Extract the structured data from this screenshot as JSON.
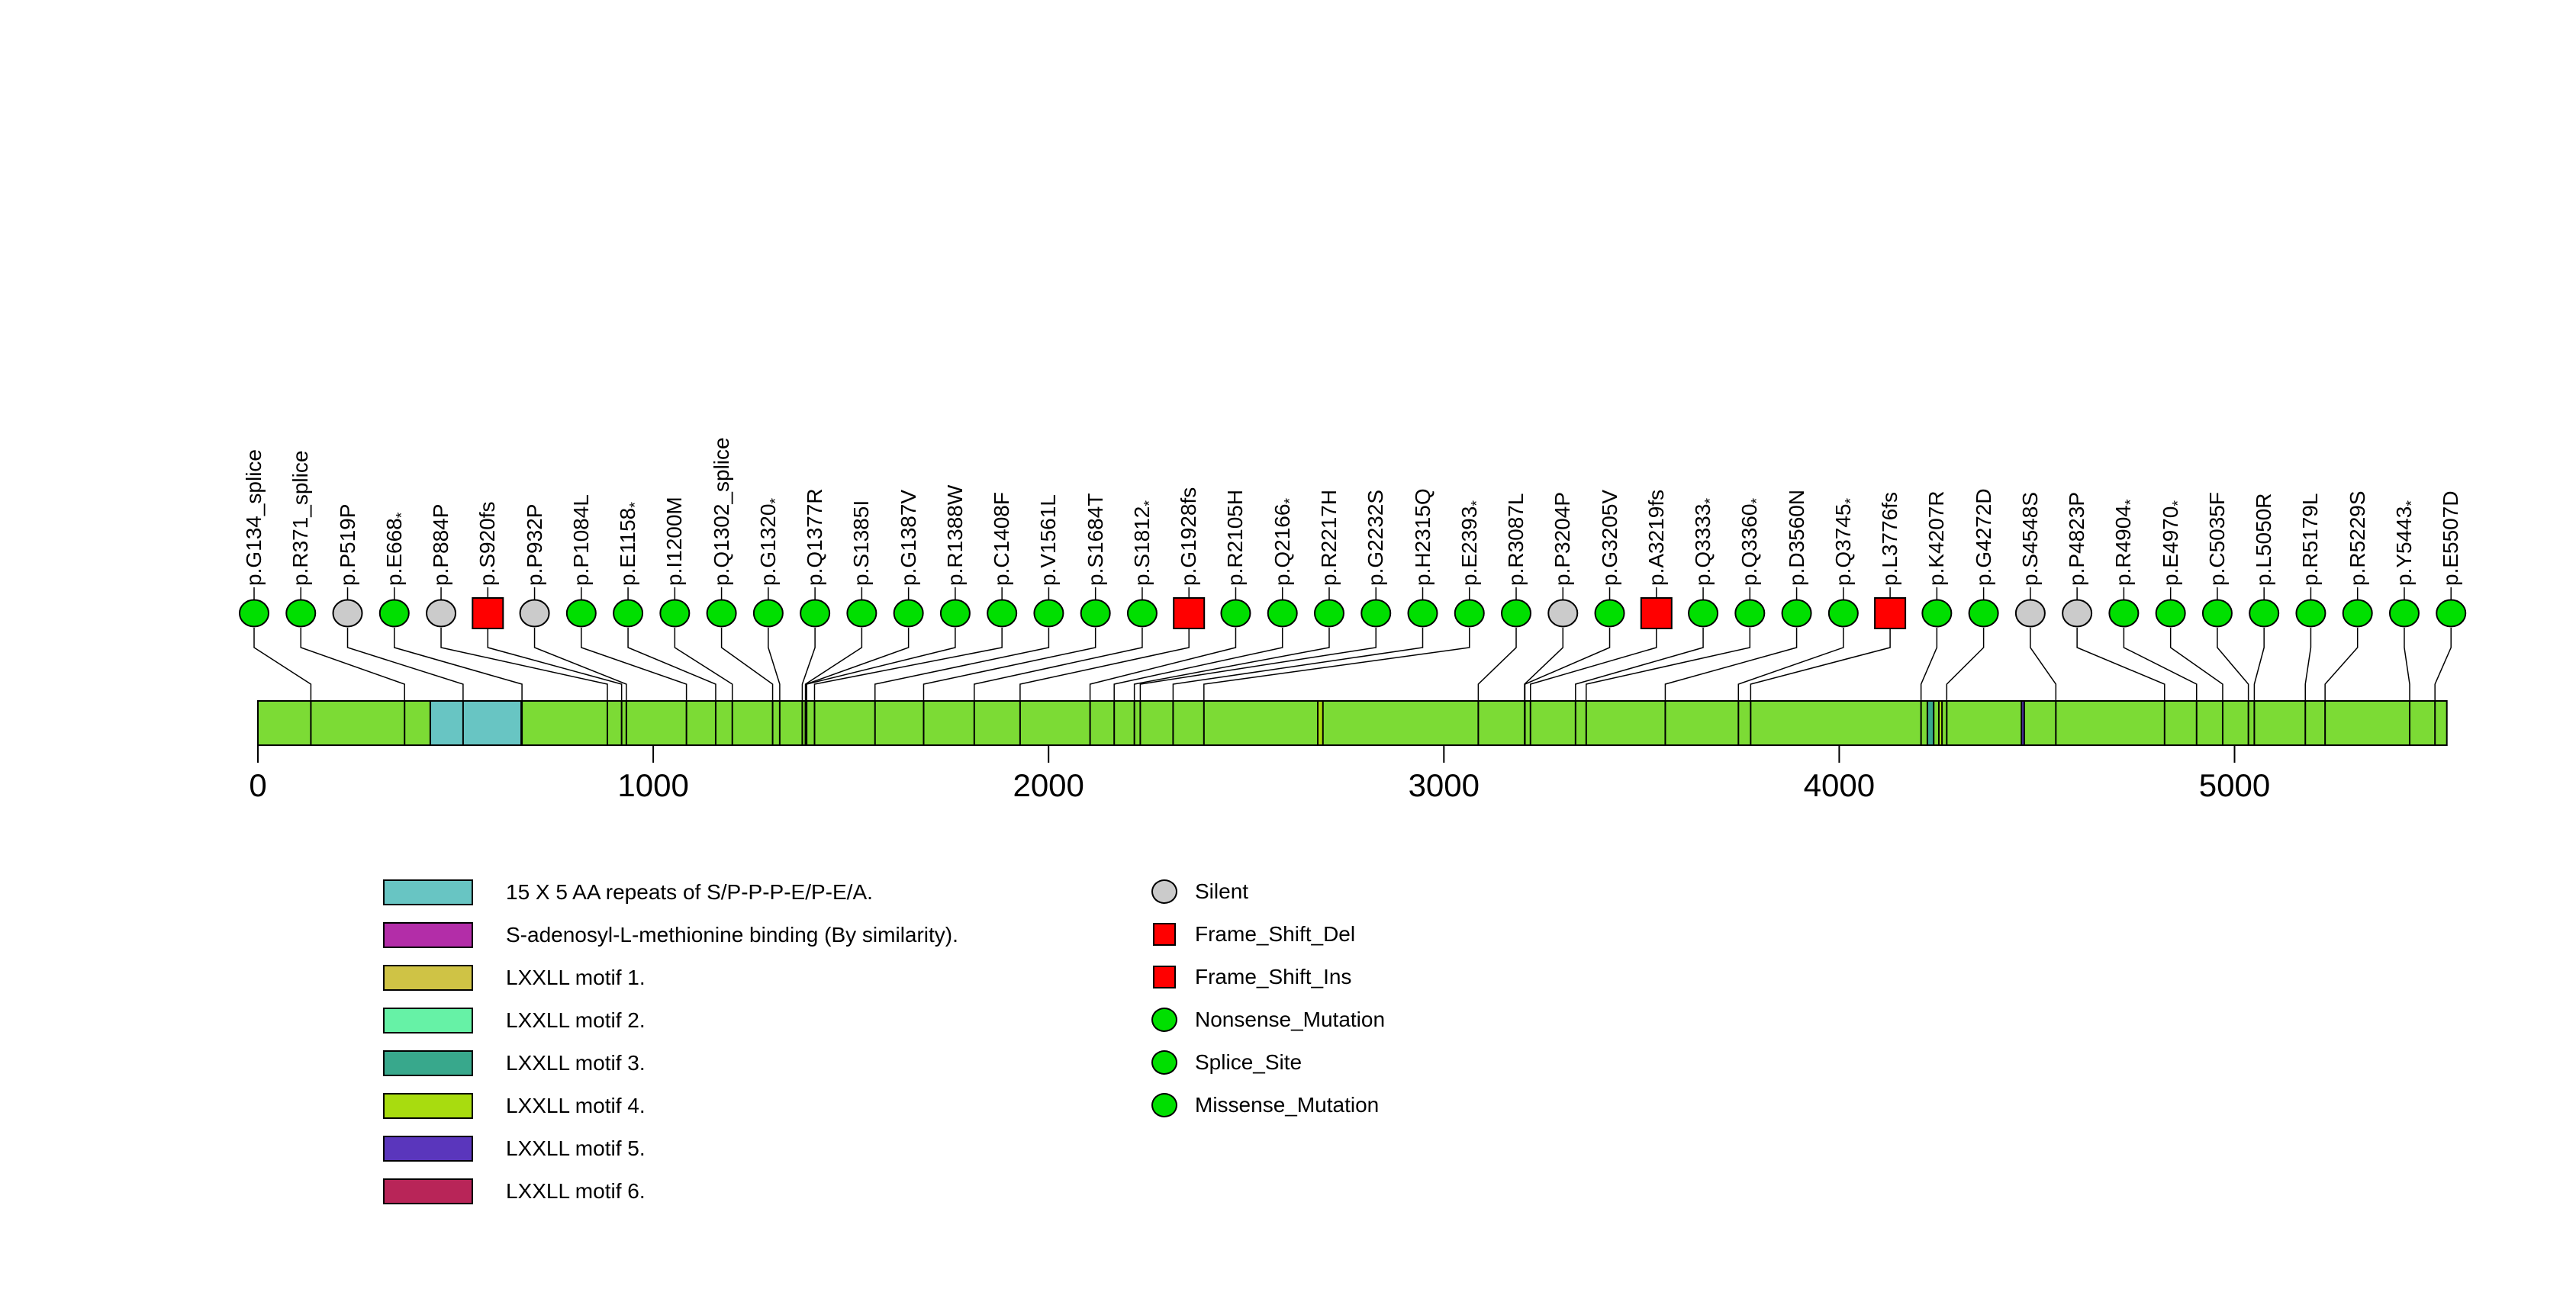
{
  "chart_data": {
    "type": "lollipop",
    "title": "",
    "xlabel": "",
    "axis": {
      "ticks": [
        0,
        1000,
        2000,
        3000,
        4000,
        5000
      ],
      "min": 0,
      "max": 5537,
      "grid": false
    },
    "protein_length": 5537,
    "bar_color": "#7CDB35",
    "mutations": [
      {
        "label": "p.G134_splice",
        "pos": 134,
        "class": "splice"
      },
      {
        "label": "p.R371_splice",
        "pos": 371,
        "class": "splice"
      },
      {
        "label": "p.P519P",
        "pos": 519,
        "class": "silent"
      },
      {
        "label": "p.E668*",
        "pos": 668,
        "class": "nonsense"
      },
      {
        "label": "p.P884P",
        "pos": 884,
        "class": "silent"
      },
      {
        "label": "p.S920fs",
        "pos": 920,
        "class": "frameshift"
      },
      {
        "label": "p.P932P",
        "pos": 932,
        "class": "silent"
      },
      {
        "label": "p.P1084L",
        "pos": 1084,
        "class": "missense"
      },
      {
        "label": "p.E1158*",
        "pos": 1158,
        "class": "nonsense"
      },
      {
        "label": "p.I1200M",
        "pos": 1200,
        "class": "missense"
      },
      {
        "label": "p.Q1302_splice",
        "pos": 1302,
        "class": "splice"
      },
      {
        "label": "p.G1320*",
        "pos": 1320,
        "class": "nonsense"
      },
      {
        "label": "p.Q1377R",
        "pos": 1377,
        "class": "missense"
      },
      {
        "label": "p.S1385I",
        "pos": 1385,
        "class": "missense"
      },
      {
        "label": "p.G1387V",
        "pos": 1387,
        "class": "missense"
      },
      {
        "label": "p.R1388W",
        "pos": 1388,
        "class": "missense"
      },
      {
        "label": "p.C1408F",
        "pos": 1408,
        "class": "missense"
      },
      {
        "label": "p.V1561L",
        "pos": 1561,
        "class": "missense"
      },
      {
        "label": "p.S1684T",
        "pos": 1684,
        "class": "missense"
      },
      {
        "label": "p.S1812*",
        "pos": 1812,
        "class": "nonsense"
      },
      {
        "label": "p.G1928fs",
        "pos": 1928,
        "class": "frameshift"
      },
      {
        "label": "p.R2105H",
        "pos": 2105,
        "class": "missense"
      },
      {
        "label": "p.Q2166*",
        "pos": 2166,
        "class": "nonsense"
      },
      {
        "label": "p.R2217H",
        "pos": 2217,
        "class": "missense"
      },
      {
        "label": "p.G2232S",
        "pos": 2232,
        "class": "missense"
      },
      {
        "label": "p.H2315Q",
        "pos": 2315,
        "class": "missense"
      },
      {
        "label": "p.E2393*",
        "pos": 2393,
        "class": "nonsense"
      },
      {
        "label": "p.R3087L",
        "pos": 3087,
        "class": "missense"
      },
      {
        "label": "p.P3204P",
        "pos": 3204,
        "class": "silent"
      },
      {
        "label": "p.G3205V",
        "pos": 3205,
        "class": "missense"
      },
      {
        "label": "p.A3219fs",
        "pos": 3219,
        "class": "frameshift"
      },
      {
        "label": "p.Q3333*",
        "pos": 3333,
        "class": "nonsense"
      },
      {
        "label": "p.Q3360*",
        "pos": 3360,
        "class": "nonsense"
      },
      {
        "label": "p.D3560N",
        "pos": 3560,
        "class": "missense"
      },
      {
        "label": "p.Q3745*",
        "pos": 3745,
        "class": "nonsense"
      },
      {
        "label": "p.L3776fs",
        "pos": 3776,
        "class": "frameshift"
      },
      {
        "label": "p.K4207R",
        "pos": 4207,
        "class": "missense"
      },
      {
        "label": "p.G4272D",
        "pos": 4272,
        "class": "missense"
      },
      {
        "label": "p.S4548S",
        "pos": 4548,
        "class": "silent"
      },
      {
        "label": "p.P4823P",
        "pos": 4823,
        "class": "silent"
      },
      {
        "label": "p.R4904*",
        "pos": 4904,
        "class": "nonsense"
      },
      {
        "label": "p.E4970*",
        "pos": 4970,
        "class": "nonsense"
      },
      {
        "label": "p.C5035F",
        "pos": 5035,
        "class": "missense"
      },
      {
        "label": "p.L5050R",
        "pos": 5050,
        "class": "missense"
      },
      {
        "label": "p.R5179L",
        "pos": 5179,
        "class": "missense"
      },
      {
        "label": "p.R5229S",
        "pos": 5229,
        "class": "missense"
      },
      {
        "label": "p.Y5443*",
        "pos": 5443,
        "class": "nonsense"
      },
      {
        "label": "p.E5507D",
        "pos": 5507,
        "class": "missense"
      }
    ],
    "class_styles": {
      "missense": {
        "color": "#00DF00",
        "shape": "circle"
      },
      "nonsense": {
        "color": "#00DF00",
        "shape": "circle"
      },
      "splice": {
        "color": "#00DF00",
        "shape": "circle"
      },
      "silent": {
        "color": "#CBCBCB",
        "shape": "circle"
      },
      "frameshift": {
        "color": "#FF0000",
        "shape": "square"
      }
    },
    "domains": [
      {
        "name": "15 X 5 AA repeats of S/P-P-P-E/P-E/A.",
        "start": 436,
        "end": 666,
        "color": "#68C5C3"
      },
      {
        "name": "LXXLL motif 4.",
        "start": 2681,
        "end": 2694,
        "color": "#A8DC0F"
      },
      {
        "name": "LXXLL motif 3.",
        "start": 4223,
        "end": 4239,
        "color": "#38A88C"
      },
      {
        "name": "LXXLL motif 4.",
        "start": 4252,
        "end": 4260,
        "color": "#A8DC0F"
      },
      {
        "name": "LXXLL motif 5.",
        "start": 4461,
        "end": 4468,
        "color": "#5A36BC"
      }
    ],
    "domain_legend": [
      {
        "label": "15 X 5 AA repeats of S/P-P-P-E/P-E/A.",
        "color": "#68C5C3"
      },
      {
        "label": "S-adenosyl-L-methionine binding (By similarity).",
        "color": "#B32DA8"
      },
      {
        "label": "LXXLL motif 1.",
        "color": "#CFC345"
      },
      {
        "label": "LXXLL motif 2.",
        "color": "#66F2A6"
      },
      {
        "label": "LXXLL motif 3.",
        "color": "#38A88C"
      },
      {
        "label": "LXXLL motif 4.",
        "color": "#A8DC0F"
      },
      {
        "label": "LXXLL motif 5.",
        "color": "#5A36BC"
      },
      {
        "label": "LXXLL motif 6.",
        "color": "#B82558"
      }
    ],
    "mutation_legend": [
      {
        "label": "Silent",
        "color": "#CBCBCB",
        "shape": "circle"
      },
      {
        "label": "Frame_Shift_Del",
        "color": "#FF0000",
        "shape": "square"
      },
      {
        "label": "Frame_Shift_Ins",
        "color": "#FF0000",
        "shape": "square"
      },
      {
        "label": "Nonsense_Mutation",
        "color": "#00DF00",
        "shape": "circle"
      },
      {
        "label": "Splice_Site",
        "color": "#00DF00",
        "shape": "circle"
      },
      {
        "label": "Missense_Mutation",
        "color": "#00DF00",
        "shape": "circle"
      }
    ]
  }
}
